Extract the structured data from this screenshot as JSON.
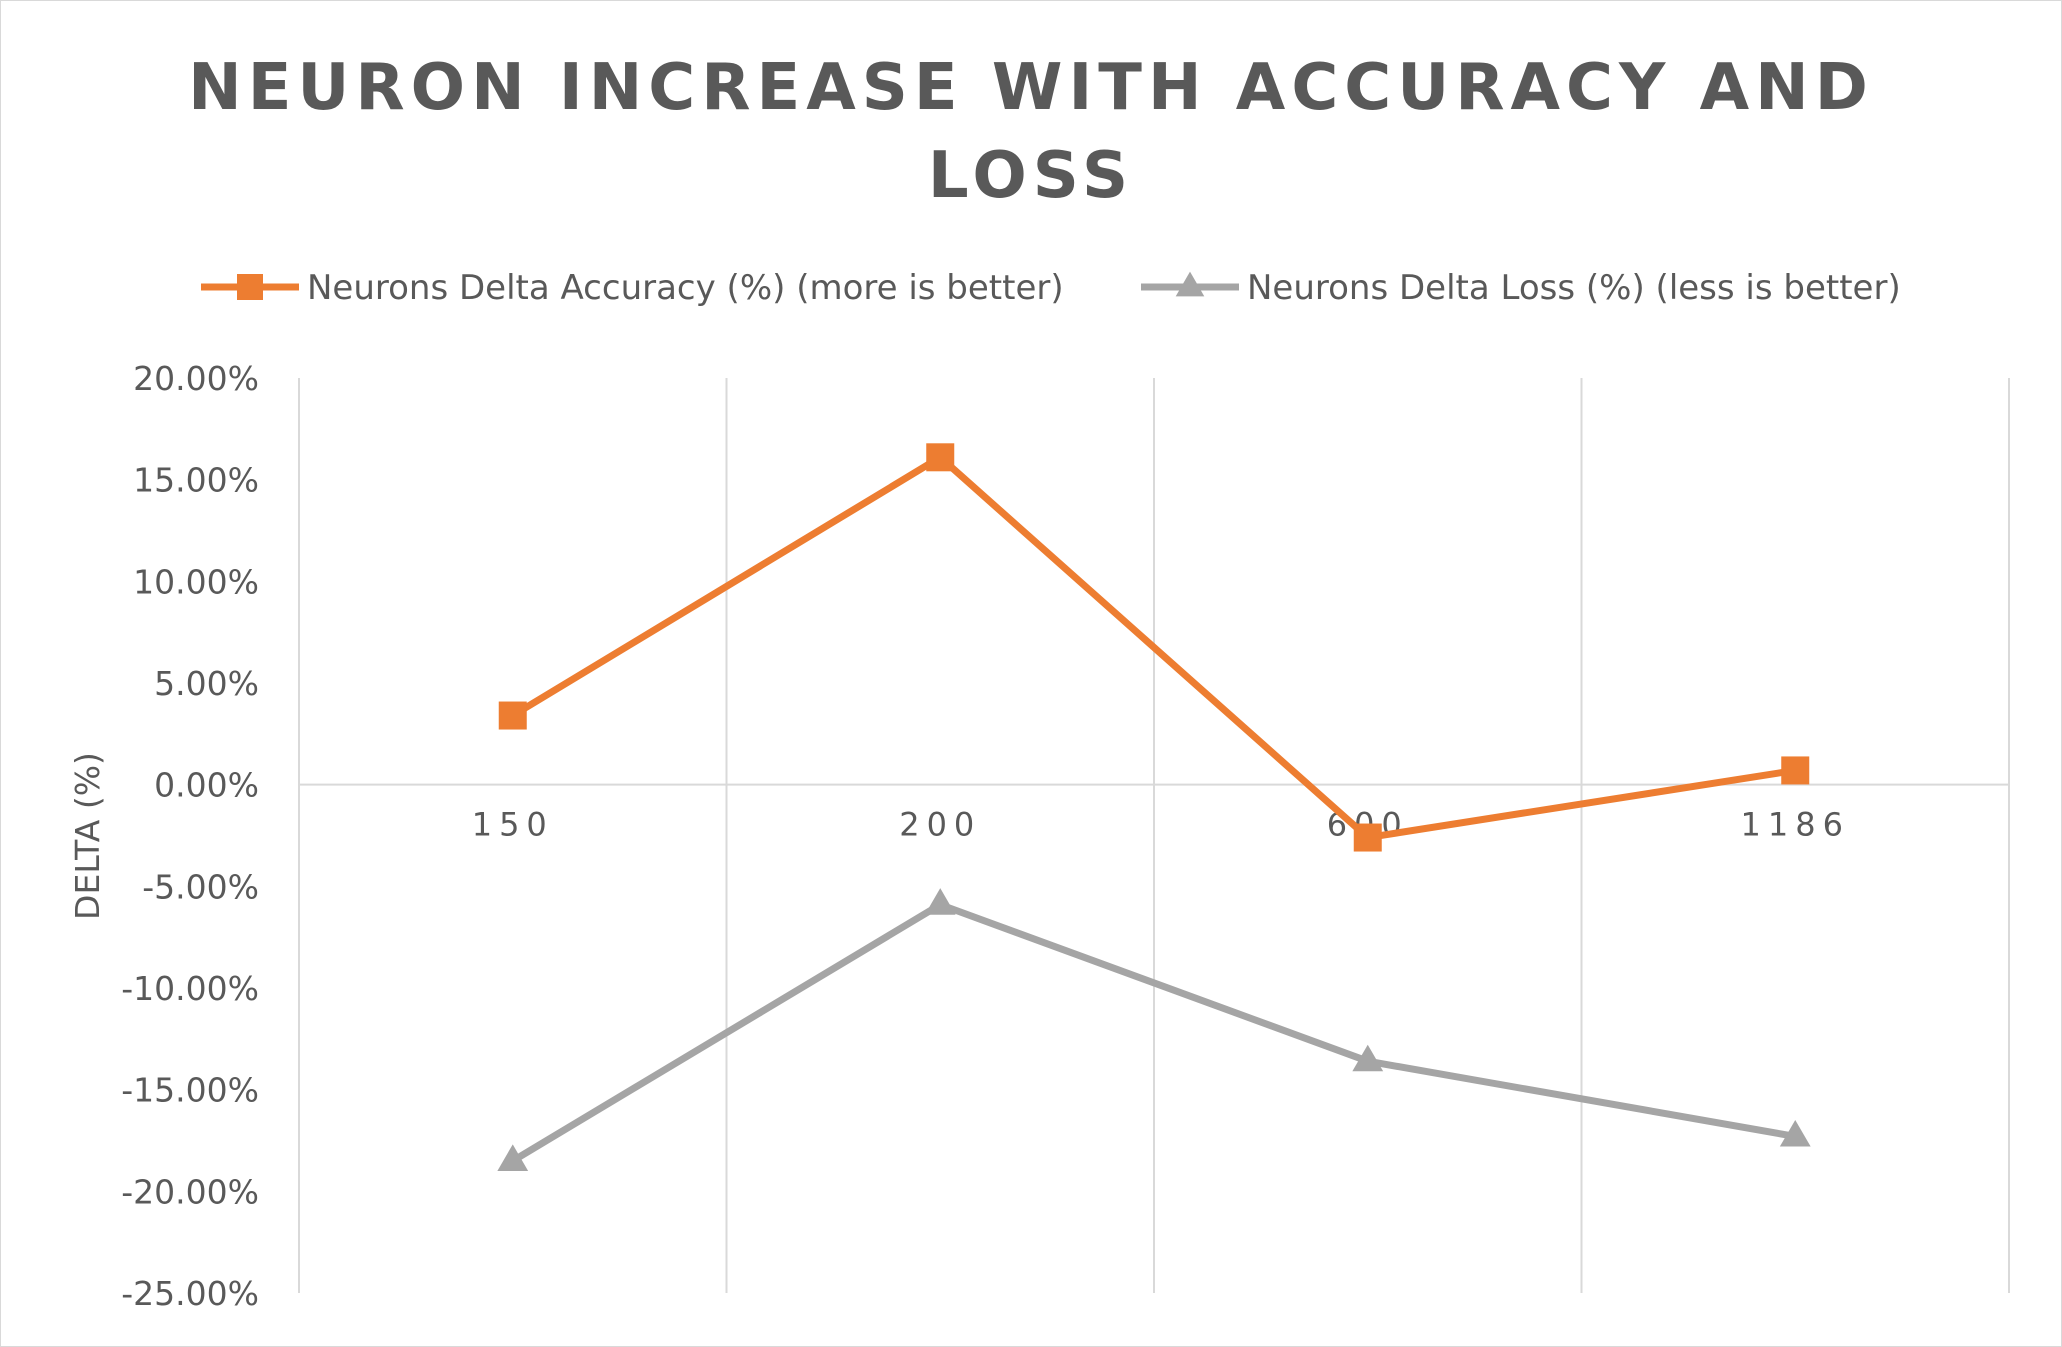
{
  "chart_data": {
    "type": "line",
    "title_lines": [
      "NEURON INCREASE WITH ACCURACY AND",
      "LOSS"
    ],
    "ylabel": "DELTA (%)",
    "xlabel": "",
    "categories": [
      "150",
      "200",
      "600",
      "1186"
    ],
    "ylim": [
      -25,
      20
    ],
    "ytick_values": [
      20,
      15,
      10,
      5,
      0,
      -5,
      -10,
      -15,
      -20,
      -25
    ],
    "ytick_labels": [
      "20.00%",
      "15.00%",
      "10.00%",
      "5.00%",
      "0.00%",
      "-5.00%",
      "-10.00%",
      "-15.00%",
      "-20.00%",
      "-25.00%"
    ],
    "grid": "vertical",
    "legend_position": "top",
    "series": [
      {
        "name": "Neurons Delta Accuracy (%) (more is better)",
        "values": [
          3.4,
          16.1,
          -2.6,
          0.7
        ],
        "color": "#ED7D31",
        "marker": "square"
      },
      {
        "name": "Neurons Delta Loss (%) (less is better)",
        "values": [
          -18.5,
          -5.9,
          -13.6,
          -17.3
        ],
        "color": "#A5A5A5",
        "marker": "triangle"
      }
    ]
  }
}
